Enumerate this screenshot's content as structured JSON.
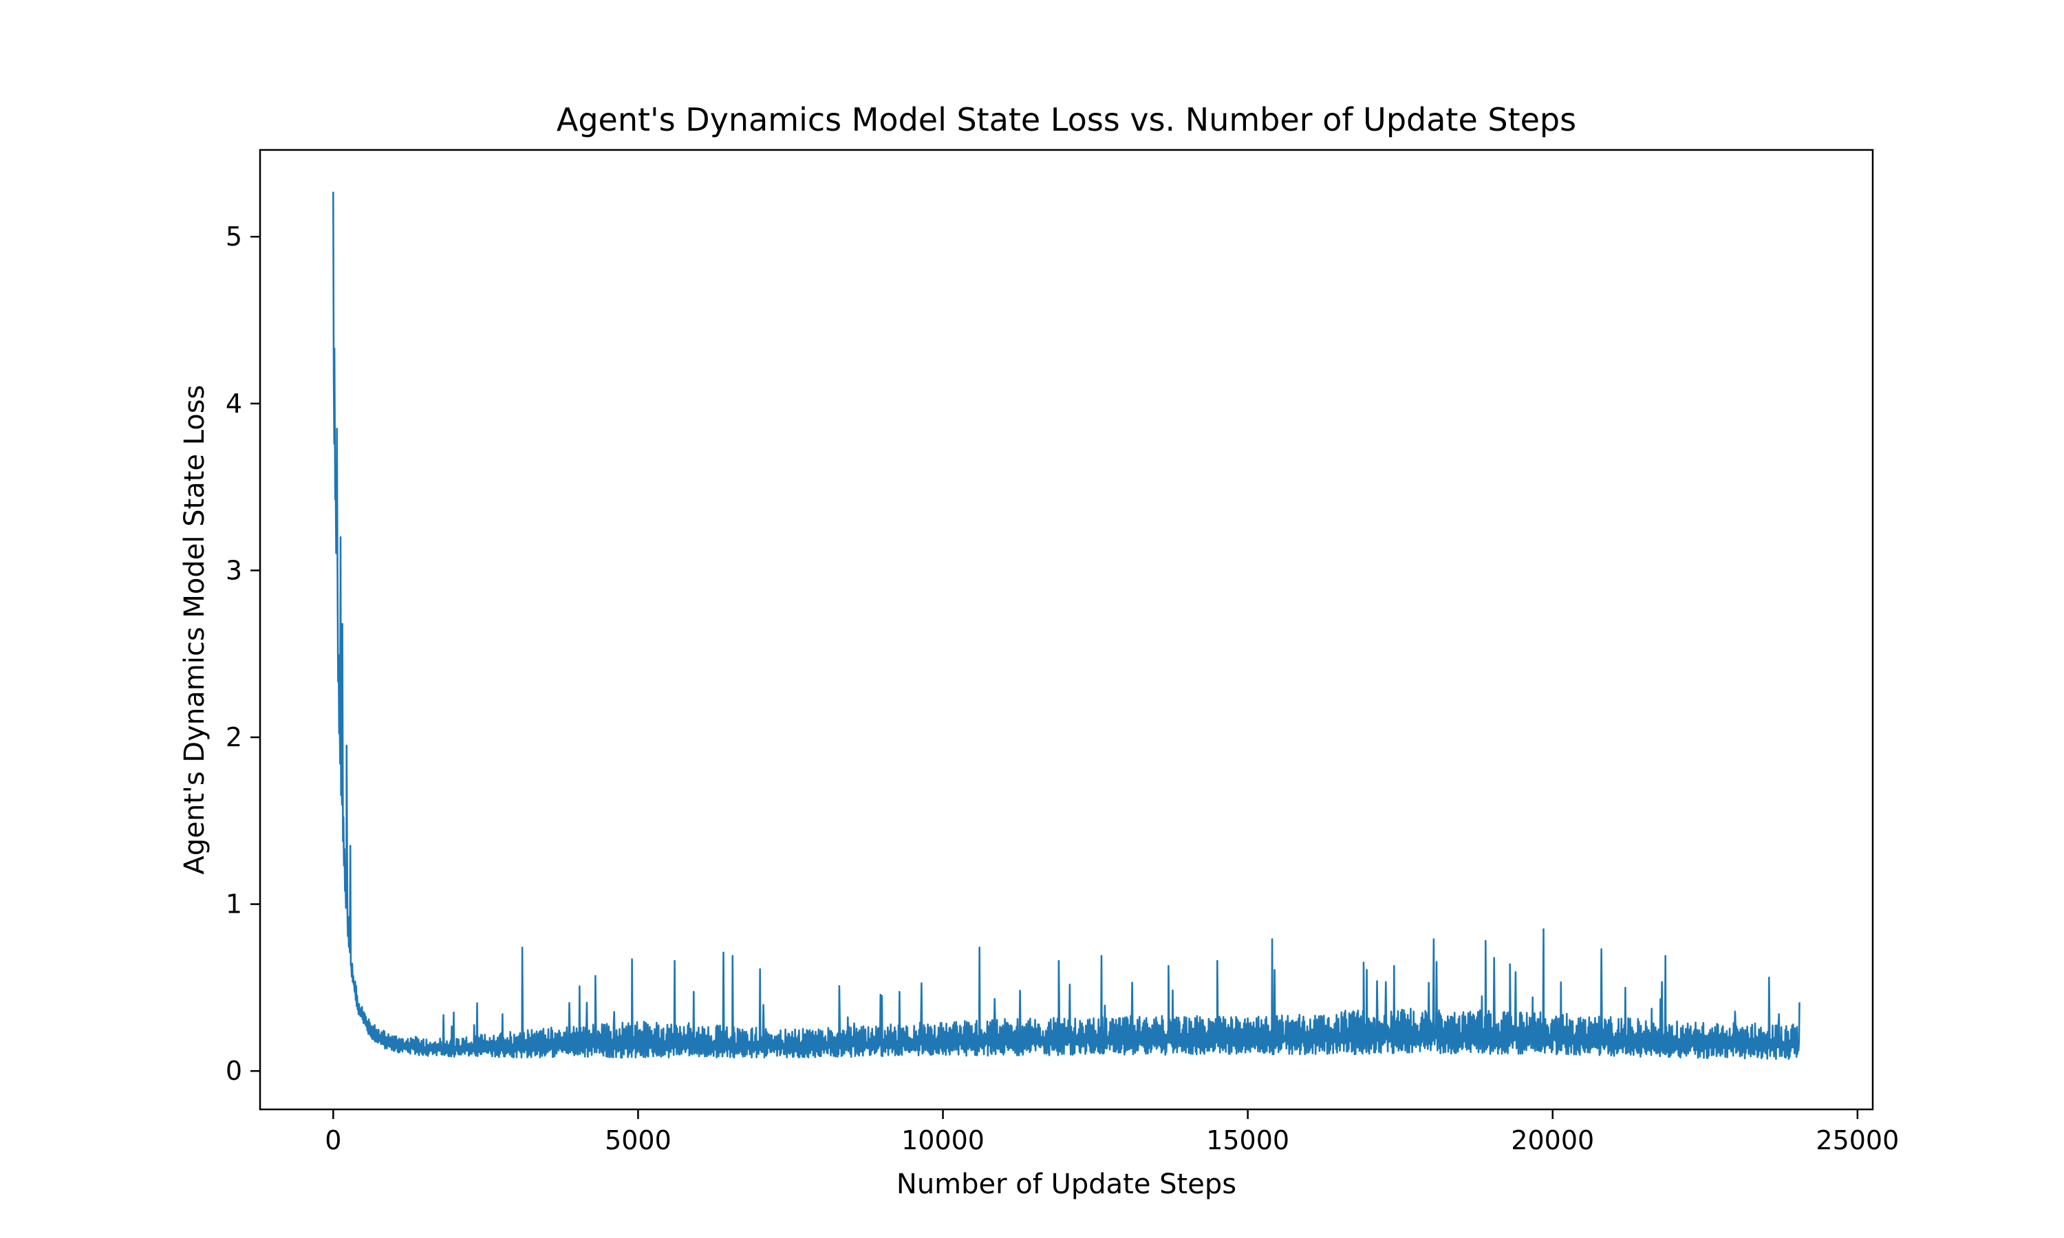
{
  "chart_data": {
    "type": "line",
    "title": "Agent's Dynamics Model State Loss vs. Number of Update Steps",
    "xlabel": "Number of Update Steps",
    "ylabel": "Agent's Dynamics Model State Loss",
    "xlim": [
      -1200,
      25250
    ],
    "ylim": [
      -0.23,
      5.52
    ],
    "xticks": [
      0,
      5000,
      10000,
      15000,
      20000,
      25000
    ],
    "xtick_labels": [
      "0",
      "5000",
      "10000",
      "15000",
      "20000",
      "25000"
    ],
    "yticks": [
      0,
      1,
      2,
      3,
      4,
      5
    ],
    "ytick_labels": [
      "0",
      "1",
      "2",
      "3",
      "4",
      "5"
    ],
    "grid": false,
    "legend": "none",
    "series": [
      {
        "color": "#1f77b4",
        "baseline_x": [
          0,
          100,
          200,
          300,
          400,
          600,
          800,
          1000,
          1500,
          2000,
          3000,
          5000,
          7500,
          10000,
          12500,
          15000,
          17500,
          20000,
          22000,
          24000
        ],
        "baseline_y": [
          4.0,
          1.9,
          0.95,
          0.55,
          0.35,
          0.2,
          0.14,
          0.11,
          0.09,
          0.085,
          0.08,
          0.08,
          0.08,
          0.09,
          0.095,
          0.1,
          0.1,
          0.1,
          0.08,
          0.07
        ],
        "upper_x": [
          0,
          100,
          200,
          300,
          400,
          600,
          800,
          1000,
          1500,
          2000,
          3000,
          5000,
          7500,
          10000,
          12500,
          15000,
          17500,
          20000,
          22000,
          24000
        ],
        "upper_y": [
          4.4,
          2.3,
          1.2,
          0.7,
          0.45,
          0.3,
          0.25,
          0.22,
          0.2,
          0.2,
          0.25,
          0.3,
          0.25,
          0.3,
          0.33,
          0.33,
          0.38,
          0.35,
          0.3,
          0.28
        ],
        "spikes": [
          {
            "x": 0,
            "y": 5.27
          },
          {
            "x": 20,
            "y": 4.33
          },
          {
            "x": 60,
            "y": 3.85
          },
          {
            "x": 120,
            "y": 3.2
          },
          {
            "x": 150,
            "y": 2.68
          },
          {
            "x": 220,
            "y": 1.95
          },
          {
            "x": 280,
            "y": 1.35
          },
          {
            "x": 3100,
            "y": 0.74
          },
          {
            "x": 4300,
            "y": 0.57
          },
          {
            "x": 4900,
            "y": 0.67
          },
          {
            "x": 5600,
            "y": 0.66
          },
          {
            "x": 6400,
            "y": 0.71
          },
          {
            "x": 6550,
            "y": 0.69
          },
          {
            "x": 7000,
            "y": 0.61
          },
          {
            "x": 8300,
            "y": 0.51
          },
          {
            "x": 9000,
            "y": 0.45
          },
          {
            "x": 10600,
            "y": 0.74
          },
          {
            "x": 11900,
            "y": 0.66
          },
          {
            "x": 12600,
            "y": 0.69
          },
          {
            "x": 13700,
            "y": 0.63
          },
          {
            "x": 14500,
            "y": 0.66
          },
          {
            "x": 15400,
            "y": 0.79
          },
          {
            "x": 16900,
            "y": 0.65
          },
          {
            "x": 17400,
            "y": 0.63
          },
          {
            "x": 18050,
            "y": 0.79
          },
          {
            "x": 18900,
            "y": 0.78
          },
          {
            "x": 19300,
            "y": 0.64
          },
          {
            "x": 19850,
            "y": 0.85
          },
          {
            "x": 20800,
            "y": 0.73
          },
          {
            "x": 21850,
            "y": 0.69
          },
          {
            "x": 23550,
            "y": 0.56
          }
        ],
        "x_end": 24050
      }
    ]
  }
}
